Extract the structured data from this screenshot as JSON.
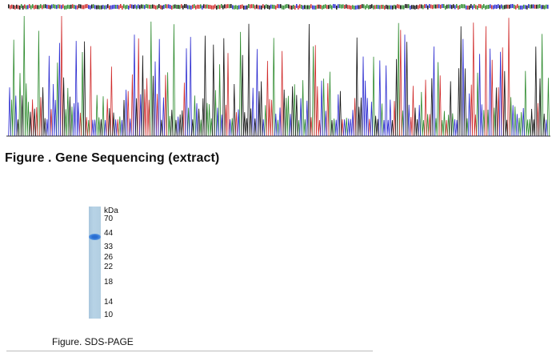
{
  "gene_sequencing": {
    "caption": "Figure . Gene Sequencing (extract)",
    "colors": {
      "A": "#2e8b2e",
      "C": "#2a2ad0",
      "G": "#111111",
      "T": "#d02a2a"
    }
  },
  "sds_page": {
    "unit": "kDa",
    "markers": [
      "70",
      "44",
      "33",
      "26",
      "22",
      "18",
      "14",
      "10"
    ],
    "caption": "Figure. SDS-PAGE",
    "band_color": "#2a6ed1",
    "lane_color": "#b2cee2"
  }
}
